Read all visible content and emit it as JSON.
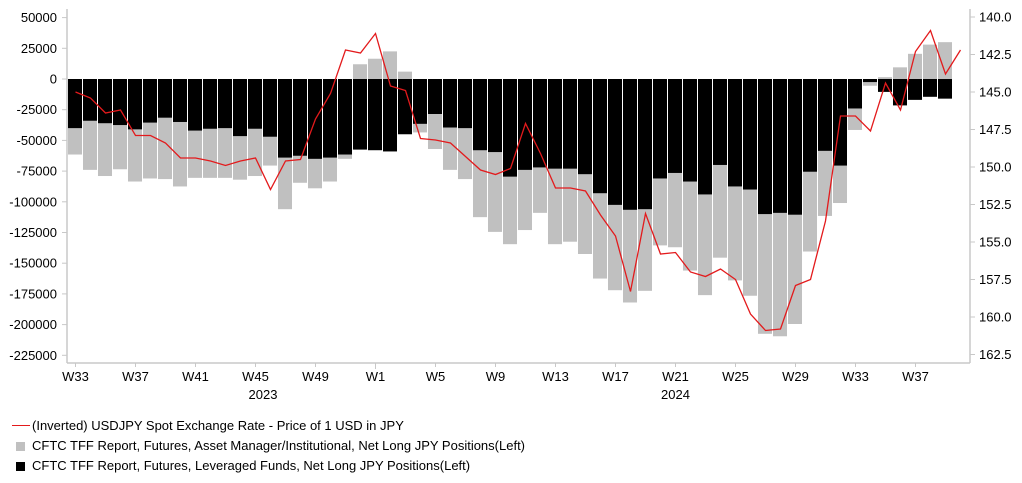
{
  "chart_data": {
    "type": "bar",
    "title": "",
    "xlabel": "",
    "ylabel": "",
    "y_left": {
      "range": [
        -235000,
        58000
      ],
      "ticks": [
        50000,
        25000,
        0,
        -25000,
        -50000,
        -75000,
        -100000,
        -125000,
        -150000,
        -175000,
        -200000,
        -225000
      ],
      "tick_labels": [
        "50000",
        "25000",
        "0",
        "-25000",
        "-50000",
        "-75000",
        "-100000",
        "-125000",
        "-150000",
        "-175000",
        "-200000",
        "-225000"
      ]
    },
    "y_right": {
      "inverted": true,
      "range": [
        139.47,
        162.97
      ],
      "ticks": [
        140.0,
        142.5,
        145.0,
        147.5,
        150.0,
        152.5,
        155.0,
        157.5,
        160.0,
        162.5
      ],
      "tick_labels": [
        "140.0",
        "142.5",
        "145.0",
        "147.5",
        "150.0",
        "152.5",
        "155.0",
        "157.5",
        "160.0",
        "162.5"
      ]
    },
    "grid": false,
    "legend_position": "bottom-left",
    "x_start_week": "2023-W33",
    "x_tick_labels": [
      {
        "index": 0,
        "label": "W33"
      },
      {
        "index": 4,
        "label": "W37"
      },
      {
        "index": 8,
        "label": "W41"
      },
      {
        "index": 12,
        "label": "W45"
      },
      {
        "index": 16,
        "label": "W49"
      },
      {
        "index": 20,
        "label": "W1"
      },
      {
        "index": 24,
        "label": "W5"
      },
      {
        "index": 28,
        "label": "W9"
      },
      {
        "index": 32,
        "label": "W13"
      },
      {
        "index": 36,
        "label": "W17"
      },
      {
        "index": 40,
        "label": "W21"
      },
      {
        "index": 44,
        "label": "W25"
      },
      {
        "index": 48,
        "label": "W29"
      },
      {
        "index": 52,
        "label": "W33"
      },
      {
        "index": 56,
        "label": "W37"
      }
    ],
    "year_labels": [
      {
        "index": 12.5,
        "label": "2023"
      },
      {
        "index": 40,
        "label": "2024"
      }
    ],
    "year_boundary_index": 20,
    "series": [
      {
        "name": "CFTC TFF Report, Futures, Asset Manager/Institutional, Net Long JPY Positions(Left)",
        "type": "bar",
        "axis": "left",
        "color": "#c0c0c0",
        "values": [
          -61500,
          -74000,
          -79000,
          -73500,
          -83500,
          -81000,
          -81500,
          -87500,
          -80500,
          -80500,
          -80500,
          -82000,
          -79000,
          -70500,
          -106000,
          -84500,
          -89000,
          -83500,
          -65000,
          12000,
          16500,
          22500,
          6000,
          -43500,
          -57000,
          -74000,
          -81500,
          -112500,
          -124500,
          -134500,
          -123000,
          -109000,
          -134500,
          -132500,
          -142500,
          -162500,
          -172000,
          -182000,
          -172500,
          -135500,
          -137000,
          -156000,
          -176000,
          -145500,
          -164000,
          -176500,
          -207500,
          -209500,
          -199500,
          -140500,
          -111500,
          -101000,
          -41500,
          -5500,
          1500,
          9500,
          20500,
          28000,
          30000
        ]
      },
      {
        "name": "CFTC TFF Report, Futures, Leveraged Funds, Net Long JPY Positions(Left)",
        "type": "bar",
        "axis": "left",
        "color": "#000000",
        "values": [
          -40000,
          -34000,
          -36000,
          -37500,
          -41000,
          -35500,
          -31500,
          -35000,
          -42000,
          -40500,
          -40000,
          -46500,
          -40500,
          -47000,
          -64000,
          -62500,
          -65000,
          -64000,
          -61500,
          -57500,
          -58000,
          -59000,
          -45000,
          -36500,
          -28500,
          -39500,
          -40000,
          -58000,
          -59500,
          -79500,
          -74000,
          -72000,
          -73000,
          -73000,
          -77500,
          -93000,
          -102500,
          -106500,
          -106000,
          -81000,
          -76500,
          -83500,
          -94000,
          -70000,
          -87500,
          -90000,
          -110000,
          -109000,
          -110500,
          -75500,
          -58500,
          -70500,
          -24000,
          -2500,
          -10500,
          -21500,
          -17000,
          -14500,
          -16000
        ]
      },
      {
        "name": "(Inverted) USDJPY Spot Exchange Rate - Price of 1 USD in JPY",
        "type": "line",
        "axis": "right",
        "color": "#e31a1c",
        "values": [
          145.0,
          145.4,
          146.4,
          146.2,
          147.9,
          147.9,
          148.4,
          149.4,
          149.4,
          149.6,
          149.9,
          149.6,
          149.4,
          151.5,
          149.6,
          149.5,
          146.8,
          145.1,
          142.2,
          142.4,
          141.1,
          144.6,
          144.9,
          148.1,
          148.2,
          148.4,
          149.3,
          150.2,
          150.5,
          150.1,
          147.1,
          149.1,
          151.4,
          151.4,
          151.6,
          153.2,
          154.6,
          158.3,
          153.1,
          155.8,
          155.7,
          157.0,
          157.3,
          156.8,
          157.5,
          159.8,
          160.9,
          160.8,
          157.9,
          157.5,
          153.6,
          146.6,
          146.6,
          147.6,
          144.4,
          146.2,
          142.3,
          140.9,
          143.8,
          142.2
        ]
      }
    ]
  },
  "legend": {
    "items": [
      {
        "label": "(Inverted) USDJPY Spot Exchange Rate - Price of 1 USD in JPY",
        "swatch": "line",
        "color": "#e31a1c"
      },
      {
        "label": "CFTC TFF Report, Futures, Asset Manager/Institutional, Net Long JPY Positions(Left)",
        "swatch": "box",
        "color": "#c0c0c0"
      },
      {
        "label": "CFTC TFF Report, Futures, Leveraged Funds, Net Long JPY Positions(Left)",
        "swatch": "box",
        "color": "#000000"
      }
    ]
  }
}
